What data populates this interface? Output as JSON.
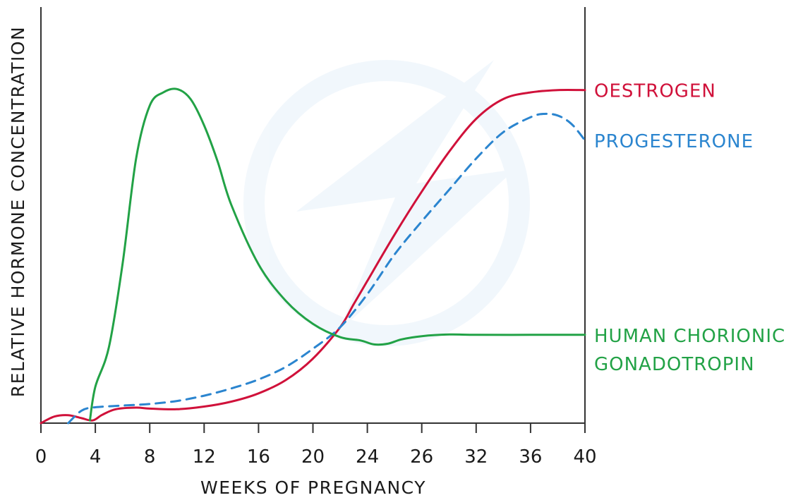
{
  "chart_data": {
    "type": "line",
    "xlabel": "WEEKS  OF  PREGNANCY",
    "ylabel": "RELATIVE  HORMONE  CONCENTRATION",
    "categories": [
      "0",
      "4",
      "8",
      "12",
      "16",
      "20",
      "24",
      "26",
      "32",
      "36",
      "40"
    ],
    "xlim": [
      0,
      40
    ],
    "ylim": [
      0,
      100
    ],
    "grid": false,
    "series": [
      {
        "name": "OESTROGEN",
        "label_lines": [
          "OESTROGEN"
        ],
        "color": "#d0113a",
        "dash": false,
        "points": [
          [
            0,
            0
          ],
          [
            1,
            2
          ],
          [
            2,
            2.4
          ],
          [
            3,
            1.5
          ],
          [
            3.8,
            0.8
          ],
          [
            4.5,
            2.5
          ],
          [
            5.5,
            4.2
          ],
          [
            7,
            4.7
          ],
          [
            8,
            4.4
          ],
          [
            10,
            4.2
          ],
          [
            12,
            5
          ],
          [
            14,
            6.5
          ],
          [
            16,
            9
          ],
          [
            18,
            13
          ],
          [
            20,
            19.5
          ],
          [
            22,
            29
          ],
          [
            23,
            36
          ],
          [
            24,
            43
          ],
          [
            26,
            57
          ],
          [
            28,
            70
          ],
          [
            30,
            82
          ],
          [
            32,
            92
          ],
          [
            34,
            98
          ],
          [
            36,
            100
          ],
          [
            38,
            100.7
          ],
          [
            40,
            100.7
          ]
        ]
      },
      {
        "name": "PROGESTERONE",
        "label_lines": [
          "PROGESTERONE"
        ],
        "color": "#2b85cf",
        "dash": true,
        "points": [
          [
            2,
            0
          ],
          [
            3,
            3.8
          ],
          [
            4,
            4.8
          ],
          [
            6,
            5.3
          ],
          [
            8,
            5.8
          ],
          [
            10,
            6.7
          ],
          [
            12,
            8.3
          ],
          [
            14,
            10.5
          ],
          [
            16,
            13.2
          ],
          [
            18,
            17
          ],
          [
            20,
            22.5
          ],
          [
            22,
            29
          ],
          [
            24,
            39
          ],
          [
            26,
            51
          ],
          [
            28,
            61
          ],
          [
            30,
            70.5
          ],
          [
            32,
            80
          ],
          [
            34,
            88
          ],
          [
            36,
            92.5
          ],
          [
            37,
            93.5
          ],
          [
            38,
            93
          ],
          [
            39,
            90.5
          ],
          [
            40,
            85.5
          ]
        ]
      },
      {
        "name": "HUMAN CHORIONIC GONADOTROPIN",
        "label_lines": [
          "HUMAN  CHORIONIC",
          "GONADOTROPIN"
        ],
        "color": "#22a246",
        "dash": false,
        "points": [
          [
            3.6,
            0.8
          ],
          [
            4,
            11
          ],
          [
            5,
            23
          ],
          [
            6,
            48
          ],
          [
            7,
            80
          ],
          [
            8,
            96
          ],
          [
            9,
            100
          ],
          [
            10,
            101
          ],
          [
            11,
            98
          ],
          [
            12,
            90
          ],
          [
            13,
            79
          ],
          [
            14,
            66
          ],
          [
            16,
            48
          ],
          [
            18,
            37
          ],
          [
            20,
            30
          ],
          [
            22,
            26
          ],
          [
            23.5,
            25
          ],
          [
            24.5,
            23.8
          ],
          [
            25.5,
            24
          ],
          [
            26.5,
            25.3
          ],
          [
            28,
            26.3
          ],
          [
            30,
            26.8
          ],
          [
            32,
            26.7
          ],
          [
            36,
            26.7
          ],
          [
            40,
            26.7
          ]
        ]
      }
    ]
  }
}
